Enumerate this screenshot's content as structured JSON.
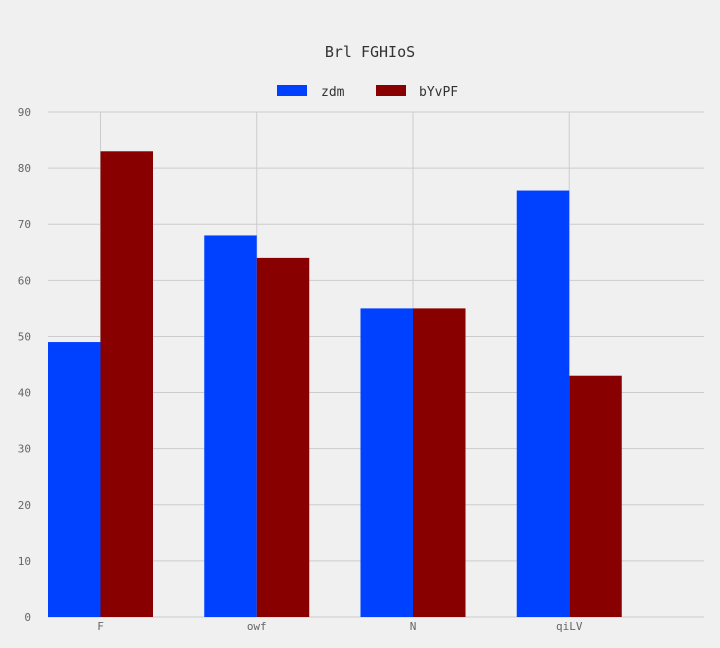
{
  "chart_data": {
    "type": "bar",
    "title": "Brl FGHIoS",
    "xlabel": "",
    "ylabel": "",
    "categories": [
      "F",
      "owf",
      "N",
      "qiLV"
    ],
    "series": [
      {
        "name": "zdm",
        "values": [
          49,
          68,
          55,
          76
        ],
        "color": "#0040ff"
      },
      {
        "name": "bYvPF",
        "values": [
          83,
          64,
          55,
          43
        ],
        "color": "#880000"
      }
    ],
    "ylim": [
      0,
      90
    ],
    "yticks": [
      0,
      10,
      20,
      30,
      40,
      50,
      60,
      70,
      80,
      90
    ],
    "grid": true,
    "legend_position": "top-center"
  }
}
